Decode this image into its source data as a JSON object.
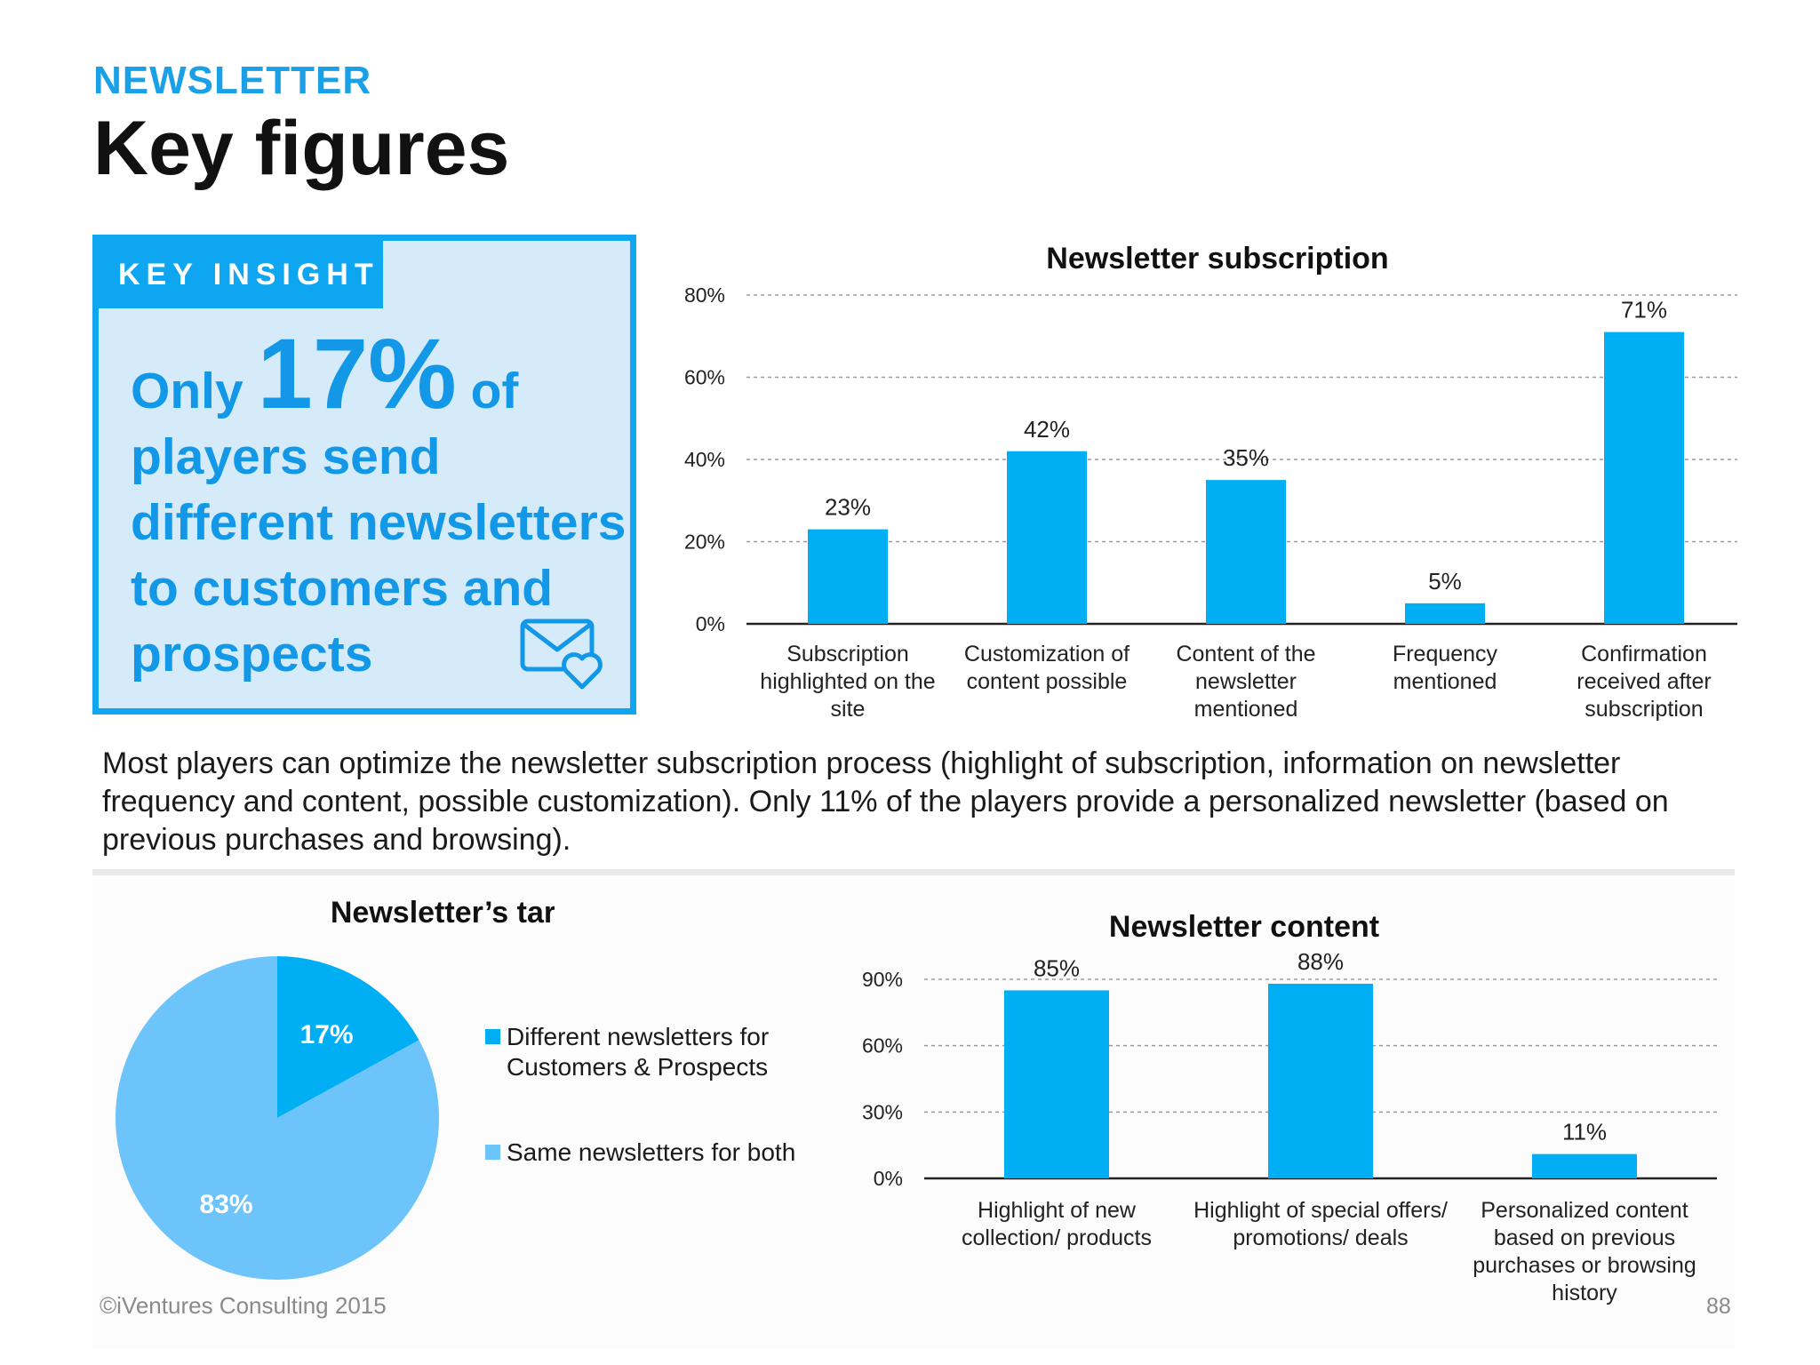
{
  "header": {
    "section": "NEWSLETTER",
    "title": "Key figures"
  },
  "insight": {
    "tag": "KEY INSIGHT",
    "only": "Only",
    "percent": "17%",
    "of": "of",
    "rest": "players send different newsletters to customers and prospects"
  },
  "summary": "Most players can optimize the newsletter subscription process (highlight of subscription, information on newsletter frequency and content, possible customization). Only 11% of the players provide a personalized newsletter (based on previous purchases and browsing).",
  "footer": {
    "copyright": "©iVentures Consulting 2015",
    "page": "88"
  },
  "colors": {
    "accent": "#0ea6f0",
    "bar": "#00aef4",
    "pie_light": "#6cc4fb",
    "insight_bg": "#d6ebfa"
  },
  "chart_data": [
    {
      "type": "bar",
      "title": "Newsletter subscription",
      "categories": [
        "Subscription highlighted on the site",
        "Customization of content possible",
        "Content of the newsletter mentioned",
        "Frequency mentioned",
        "Confirmation received after subscription"
      ],
      "category_lines": [
        [
          "Subscription",
          "highlighted on the",
          "site"
        ],
        [
          "Customization of",
          "content possible"
        ],
        [
          "Content of the",
          "newsletter",
          "mentioned"
        ],
        [
          "Frequency",
          "mentioned"
        ],
        [
          "Confirmation",
          "received after",
          "subscription"
        ]
      ],
      "values": [
        23,
        42,
        35,
        5,
        71
      ],
      "value_labels": [
        "23%",
        "42%",
        "35%",
        "5%",
        "71%"
      ],
      "yticks": [
        0,
        20,
        40,
        60,
        80
      ],
      "ytick_labels": [
        "0%",
        "20%",
        "40%",
        "60%",
        "80%"
      ],
      "ylim": [
        0,
        80
      ],
      "grid": true
    },
    {
      "type": "pie",
      "title": "Newsletter’s target",
      "labels": [
        "Different newsletters for Customers & Prospects",
        "Same newsletters for both"
      ],
      "values": [
        17,
        83
      ],
      "value_labels": [
        "17%",
        "83%"
      ],
      "legend_lines": [
        [
          "Different newsletters for",
          "Customers & Prospects"
        ],
        [
          "Same newsletters for both"
        ]
      ],
      "legend": "right"
    },
    {
      "type": "bar",
      "title": "Newsletter content",
      "categories": [
        "Highlight of new collection/ products",
        "Highlight of special offers/ promotions/ deals",
        "Personalized content based on previous purchases or browsing history"
      ],
      "category_lines": [
        [
          "Highlight of new",
          "collection/ products"
        ],
        [
          "Highlight of special offers/",
          "promotions/ deals"
        ],
        [
          "Personalized content",
          "based on previous",
          "purchases or browsing",
          "history"
        ]
      ],
      "values": [
        85,
        88,
        11
      ],
      "value_labels": [
        "85%",
        "88%",
        "11%"
      ],
      "yticks": [
        0,
        30,
        60,
        90
      ],
      "ytick_labels": [
        "0%",
        "30%",
        "60%",
        "90%"
      ],
      "ylim": [
        0,
        90
      ],
      "grid": true
    }
  ]
}
